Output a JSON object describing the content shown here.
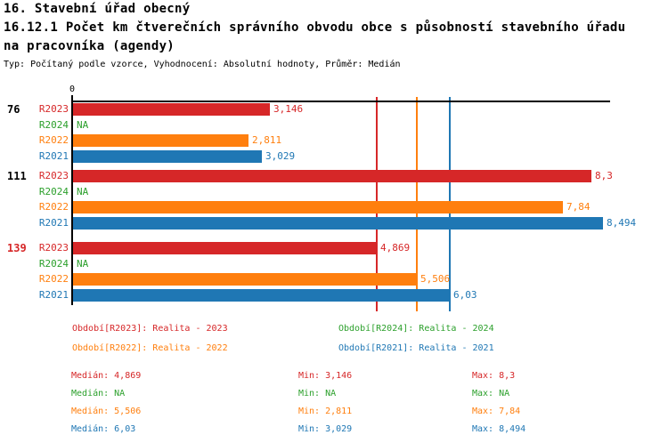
{
  "header": {
    "title_line1": "16. Stavební úřad obecný",
    "title_line2": "16.12.1 Počet km čtverečních správního obvodu obce s působností stavebního úřadu",
    "title_line3": "na pracovníka (agendy)",
    "subtitle": "Typ: Počítaný podle vzorce, Vyhodnocení: Absolutní hodnoty, Průměr: Medián"
  },
  "colors": {
    "red": "#d62728",
    "green": "#2ca02c",
    "orange": "#ff7f0e",
    "blue": "#1f77b4",
    "axis": "#000000",
    "highlight_group": "#d62728"
  },
  "chart_data": {
    "type": "bar",
    "orientation": "horizontal",
    "title": "16.12.1 Počet km čtverečních správního obvodu obce s působností stavebního úřadu na pracovníka (agendy)",
    "subtitle": "Typ: Počítaný podle vzorce, Vyhodnocení: Absolutní hodnoty, Průměr: Medián",
    "zero_tick_label": "0",
    "xlim": [
      0,
      8.6
    ],
    "categories": [
      "76",
      "111",
      "139"
    ],
    "highlighted_category": "139",
    "na_text": "NA",
    "series": [
      {
        "name": "R2023",
        "color": "#d62728",
        "legend": "Období[R2023]: Realita - 2023",
        "values": [
          3.146,
          8.3,
          4.869
        ],
        "displays": [
          "3,146",
          "8,3",
          "4,869"
        ]
      },
      {
        "name": "R2024",
        "color": "#2ca02c",
        "legend": "Období[R2024]: Realita - 2024",
        "values": [
          null,
          null,
          null
        ],
        "displays": [
          "NA",
          "NA",
          "NA"
        ]
      },
      {
        "name": "R2022",
        "color": "#ff7f0e",
        "legend": "Období[R2022]: Realita - 2022",
        "values": [
          2.811,
          7.84,
          5.506
        ],
        "displays": [
          "2,811",
          "7,84",
          "5,506"
        ]
      },
      {
        "name": "R2021",
        "color": "#1f77b4",
        "legend": "Období[R2021]: Realita - 2021",
        "values": [
          3.029,
          8.494,
          6.03
        ],
        "displays": [
          "3,029",
          "8,494",
          "6,03"
        ]
      }
    ],
    "median_lines": [
      {
        "series": "R2023",
        "color": "#d62728",
        "value": 4.869
      },
      {
        "series": "R2022",
        "color": "#ff7f0e",
        "value": 5.506
      },
      {
        "series": "R2021",
        "color": "#1f77b4",
        "value": 6.03
      }
    ]
  },
  "stats": {
    "median_label": "Medián",
    "min_label": "Min",
    "max_label": "Max",
    "rows": [
      {
        "series": "R2023",
        "color": "#d62728",
        "median": "4,869",
        "min": "3,146",
        "max": "8,3"
      },
      {
        "series": "R2024",
        "color": "#2ca02c",
        "median": "NA",
        "min": "NA",
        "max": "NA"
      },
      {
        "series": "R2022",
        "color": "#ff7f0e",
        "median": "5,506",
        "min": "2,811",
        "max": "7,84"
      },
      {
        "series": "R2021",
        "color": "#1f77b4",
        "median": "6,03",
        "min": "3,029",
        "max": "8,494"
      }
    ]
  }
}
